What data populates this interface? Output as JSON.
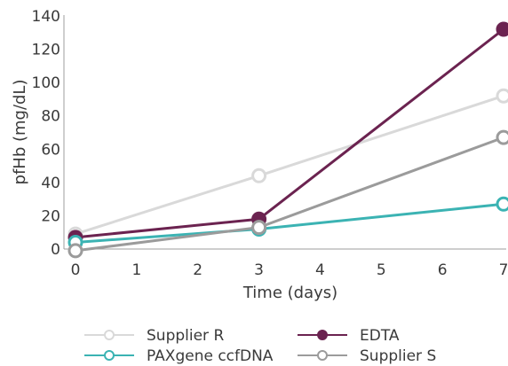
{
  "chart_data": {
    "type": "line",
    "x": [
      0,
      3,
      7
    ],
    "xlabel": "Time (days)",
    "ylabel": "pfHb (mg/dL)",
    "xlim": [
      0,
      7
    ],
    "ylim": [
      0,
      140
    ],
    "xticks": [
      0,
      1,
      2,
      3,
      4,
      5,
      6,
      7
    ],
    "yticks": [
      0,
      20,
      40,
      60,
      80,
      100,
      120,
      140
    ],
    "grid": false,
    "legend_position": "bottom",
    "series": [
      {
        "name": "Supplier R",
        "values": [
          9,
          44,
          92
        ],
        "color": "#d9d9d9",
        "marker": "open-circle"
      },
      {
        "name": "EDTA",
        "values": [
          7,
          18,
          132
        ],
        "color": "#6b2350",
        "marker": "filled-circle"
      },
      {
        "name": "PAXgene ccfDNA",
        "values": [
          4,
          12,
          27
        ],
        "color": "#3bb3b3",
        "marker": "open-circle"
      },
      {
        "name": "Supplier S",
        "values": [
          -1,
          13,
          67
        ],
        "color": "#9b9b9b",
        "marker": "open-circle"
      }
    ]
  }
}
